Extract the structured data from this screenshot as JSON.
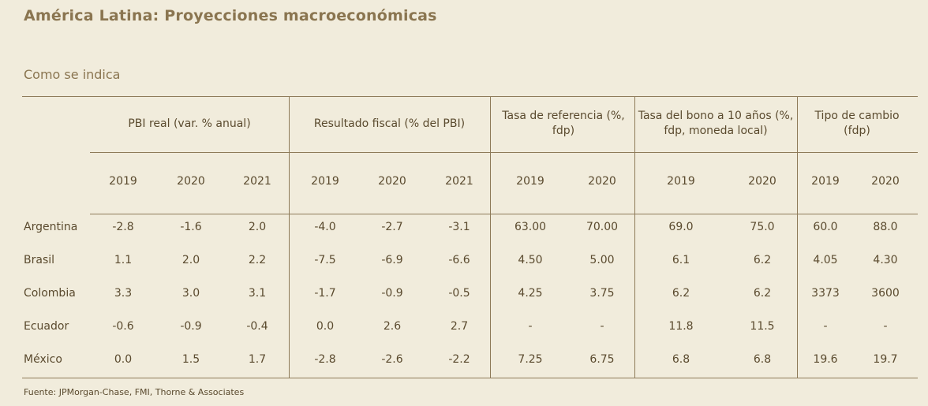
{
  "title": "América Latina: Proyecciones macroeconómicas",
  "subtitle": "Como se indica",
  "groups": [
    {
      "label": "PBI real (var. % anual)"
    },
    {
      "label": "Resultado fiscal (% del PBI)"
    },
    {
      "label": "Tasa de referencia (%, fdp)"
    },
    {
      "label": "Tasa del bono a 10 años (%, fdp, moneda local)"
    },
    {
      "label": "Tipo de cambio (fdp)"
    }
  ],
  "years": [
    "2019",
    "2020",
    "2021",
    "2019",
    "2020",
    "2021",
    "2019",
    "2020",
    "2019",
    "2020",
    "2019",
    "2020"
  ],
  "rows": [
    {
      "country": "Argentina",
      "values": [
        "-2.8",
        "-1.6",
        "2.0",
        "-4.0",
        "-2.7",
        "-3.1",
        "63.00",
        "70.00",
        "69.0",
        "75.0",
        "60.0",
        "88.0"
      ]
    },
    {
      "country": "Brasil",
      "values": [
        "1.1",
        "2.0",
        "2.2",
        "-7.5",
        "-6.9",
        "-6.6",
        "4.50",
        "5.00",
        "6.1",
        "6.2",
        "4.05",
        "4.30"
      ]
    },
    {
      "country": "Colombia",
      "values": [
        "3.3",
        "3.0",
        "3.1",
        "-1.7",
        "-0.9",
        "-0.5",
        "4.25",
        "3.75",
        "6.2",
        "6.2",
        "3373",
        "3600"
      ]
    },
    {
      "country": "Ecuador",
      "values": [
        "-0.6",
        "-0.9",
        "-0.4",
        "0.0",
        "2.6",
        "2.7",
        "-",
        "-",
        "11.8",
        "11.5",
        "-",
        "-"
      ]
    },
    {
      "country": "México",
      "values": [
        "0.0",
        "1.5",
        "1.7",
        "-2.8",
        "-2.6",
        "-2.2",
        "7.25",
        "6.75",
        "6.8",
        "6.8",
        "19.6",
        "19.7"
      ]
    }
  ],
  "source": "Fuente: JPMorgan-Chase, FMI, Thorne & Associates"
}
